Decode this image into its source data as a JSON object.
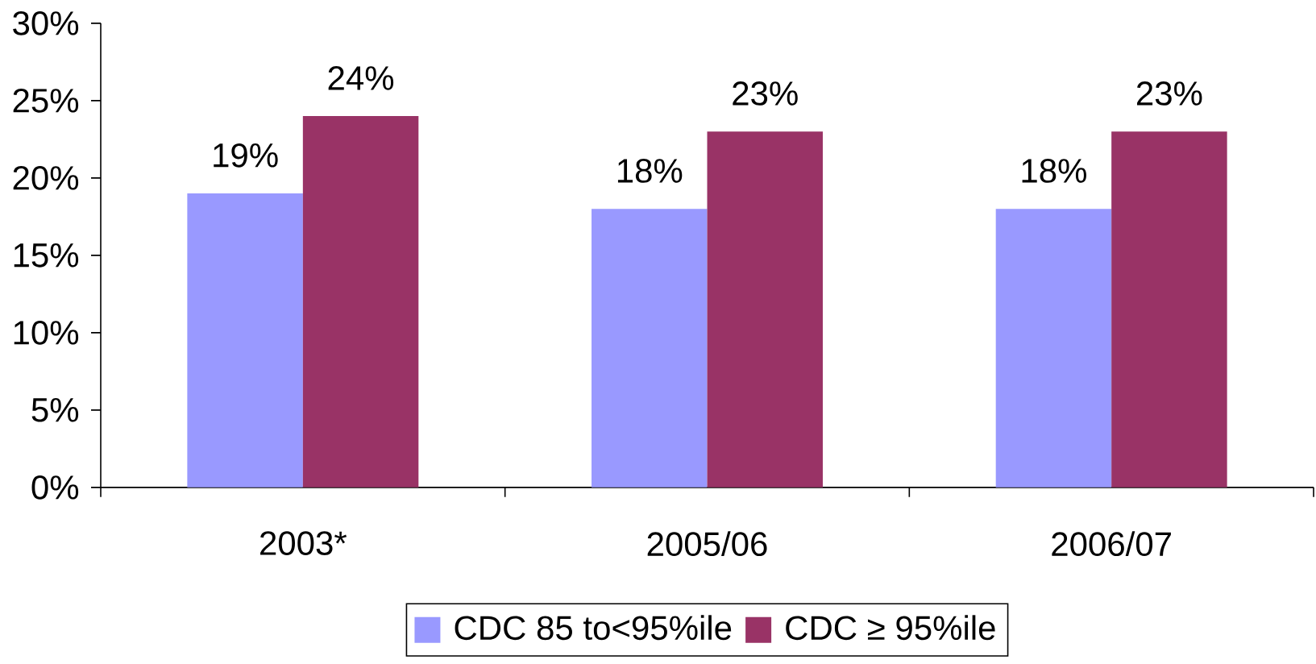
{
  "chart_data": {
    "type": "bar",
    "categories": [
      "2003*",
      "2005/06",
      "2006/07"
    ],
    "series": [
      {
        "name": "CDC 85 to<95%ile",
        "color": "#9999ff",
        "values": [
          19,
          18,
          18
        ],
        "value_labels": [
          "19%",
          "18%",
          "18%"
        ]
      },
      {
        "name": "CDC ≥ 95%ile",
        "color": "#993366",
        "values": [
          24,
          23,
          23
        ],
        "value_labels": [
          "24%",
          "23%",
          "23%"
        ]
      }
    ],
    "ylim": [
      0,
      30
    ],
    "yticks": [
      {
        "value": 0,
        "label": "0%"
      },
      {
        "value": 5,
        "label": "5%"
      },
      {
        "value": 10,
        "label": "10%"
      },
      {
        "value": 15,
        "label": "15%"
      },
      {
        "value": 20,
        "label": "20%"
      },
      {
        "value": 25,
        "label": "25%"
      },
      {
        "value": 30,
        "label": "30%"
      }
    ],
    "grid": false,
    "legend": "bottom"
  }
}
